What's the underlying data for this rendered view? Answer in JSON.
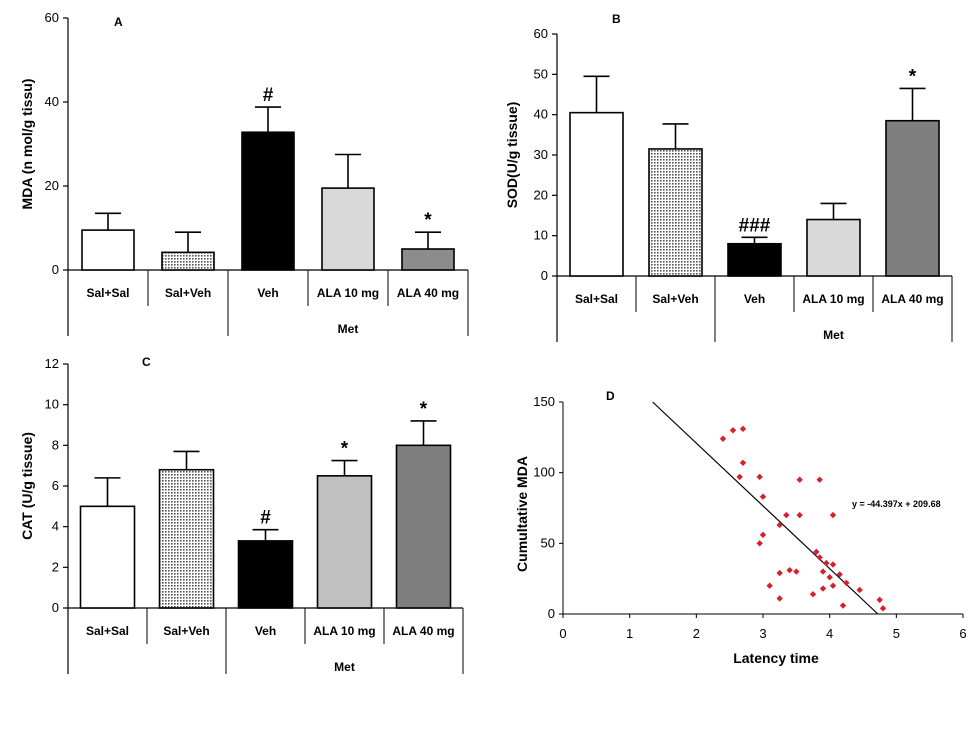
{
  "chart_data": [
    {
      "type": "bar",
      "panel_label": "A",
      "ylabel": "MDA (n mol/g tissu)",
      "ylim": [
        0,
        60
      ],
      "yticks": [
        0,
        20,
        40,
        60
      ],
      "categories": [
        "Sal+Sal",
        "Sal+Veh",
        "Veh",
        "ALA 10 mg",
        "ALA 40 mg"
      ],
      "group_label": "Met",
      "values": [
        9.5,
        4.2,
        32.8,
        19.5,
        5.0
      ],
      "errors": [
        4.0,
        4.8,
        6.0,
        8.0,
        4.0
      ],
      "significance": [
        "",
        "",
        "#",
        "",
        "*"
      ],
      "fill_colors": [
        "#ffffff",
        "#cfcfcf",
        "#000000",
        "#d9d9d9",
        "#8c8c8c"
      ]
    },
    {
      "type": "bar",
      "panel_label": "B",
      "ylabel": "SOD(U/g tissue)",
      "ylim": [
        0,
        60
      ],
      "yticks": [
        0,
        10,
        20,
        30,
        40,
        50,
        60
      ],
      "categories": [
        "Sal+Sal",
        "Sal+Veh",
        "Veh",
        "ALA 10 mg",
        "ALA 40 mg"
      ],
      "group_label": "Met",
      "values": [
        40.5,
        31.5,
        8.0,
        14.0,
        38.5
      ],
      "errors": [
        9.0,
        6.2,
        1.6,
        4.0,
        8.0
      ],
      "significance": [
        "",
        "",
        "###",
        "",
        "*"
      ],
      "fill_colors": [
        "#ffffff",
        "#cfcfcf",
        "#000000",
        "#d9d9d9",
        "#7f7f7f"
      ]
    },
    {
      "type": "bar",
      "panel_label": "C",
      "ylabel": "CAT (U/g tissue)",
      "ylim": [
        0,
        12
      ],
      "yticks": [
        0,
        2,
        4,
        6,
        8,
        10,
        12
      ],
      "categories": [
        "Sal+Sal",
        "Sal+Veh",
        "Veh",
        "ALA 10 mg",
        "ALA 40 mg"
      ],
      "group_label": "Met",
      "values": [
        5.0,
        6.8,
        3.3,
        6.5,
        8.0
      ],
      "errors": [
        1.4,
        0.9,
        0.55,
        0.75,
        1.2
      ],
      "significance": [
        "",
        "",
        "#",
        "*",
        "*"
      ],
      "fill_colors": [
        "#ffffff",
        "#cfcfcf",
        "#000000",
        "#c0c0c0",
        "#7f7f7f"
      ]
    },
    {
      "type": "scatter",
      "panel_label": "D",
      "xlabel": "Latency time",
      "ylabel": "Cumultative MDA",
      "xlim": [
        0,
        6
      ],
      "ylim": [
        0,
        150
      ],
      "xticks": [
        0,
        1,
        2,
        3,
        4,
        5,
        6
      ],
      "yticks": [
        0,
        50,
        100,
        150
      ],
      "equation": "y = -44.397x + 209.68",
      "trendline": {
        "slope": -44.397,
        "intercept": 209.68
      },
      "point_color": "#d6202f",
      "points": [
        [
          2.4,
          124
        ],
        [
          2.55,
          130
        ],
        [
          2.7,
          131
        ],
        [
          2.7,
          107
        ],
        [
          2.95,
          97
        ],
        [
          2.65,
          97
        ],
        [
          3.0,
          83
        ],
        [
          3.0,
          56
        ],
        [
          2.95,
          50
        ],
        [
          3.25,
          63
        ],
        [
          3.35,
          70
        ],
        [
          3.55,
          70
        ],
        [
          3.55,
          95
        ],
        [
          3.85,
          95
        ],
        [
          4.05,
          70
        ],
        [
          3.25,
          29
        ],
        [
          3.4,
          31
        ],
        [
          3.5,
          30
        ],
        [
          3.1,
          20
        ],
        [
          3.25,
          11
        ],
        [
          3.8,
          44
        ],
        [
          3.85,
          40
        ],
        [
          3.95,
          36
        ],
        [
          3.9,
          30
        ],
        [
          4.05,
          35
        ],
        [
          4.0,
          26
        ],
        [
          4.15,
          28
        ],
        [
          4.25,
          22
        ],
        [
          3.75,
          14
        ],
        [
          3.9,
          18
        ],
        [
          4.05,
          20
        ],
        [
          4.45,
          17
        ],
        [
          4.2,
          6
        ],
        [
          4.75,
          10
        ],
        [
          4.8,
          4
        ]
      ]
    }
  ]
}
